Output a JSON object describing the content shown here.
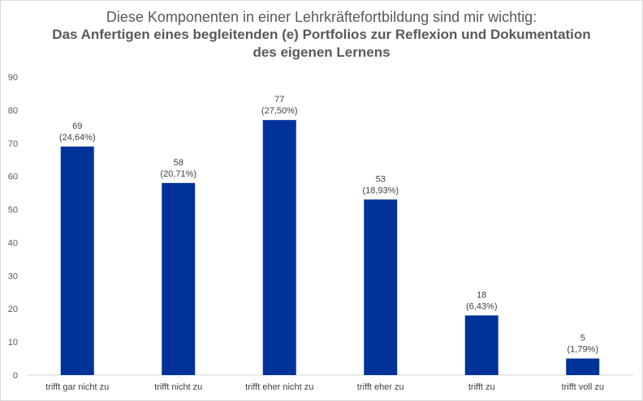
{
  "chart_data": {
    "type": "bar",
    "title": "Diese Komponenten in einer Lehrkräftefortbildung sind mir wichtig:",
    "subtitle_lines": [
      "Das Anfertigen eines begleitenden (e) Portfolios zur Reflexion und Dokumentation",
      "des eigenen Lernens"
    ],
    "categories": [
      "trifft gar nicht zu",
      "trifft nicht zu",
      "trifft eher nicht zu",
      "trifft eher zu",
      "trifft zu",
      "trifft voll zu"
    ],
    "values": [
      69,
      58,
      77,
      53,
      18,
      5
    ],
    "percent_labels": [
      "(24,64%)",
      "(20,71%)",
      "(27,50%)",
      "(18,93%)",
      "(6,43%)",
      "(1,79%)"
    ],
    "ylim": [
      0,
      90
    ],
    "yticks": [
      0,
      10,
      20,
      30,
      40,
      50,
      60,
      70,
      80,
      90
    ],
    "grid": false,
    "bar_color": "#003399",
    "axis_color": "#d9d9d9"
  }
}
